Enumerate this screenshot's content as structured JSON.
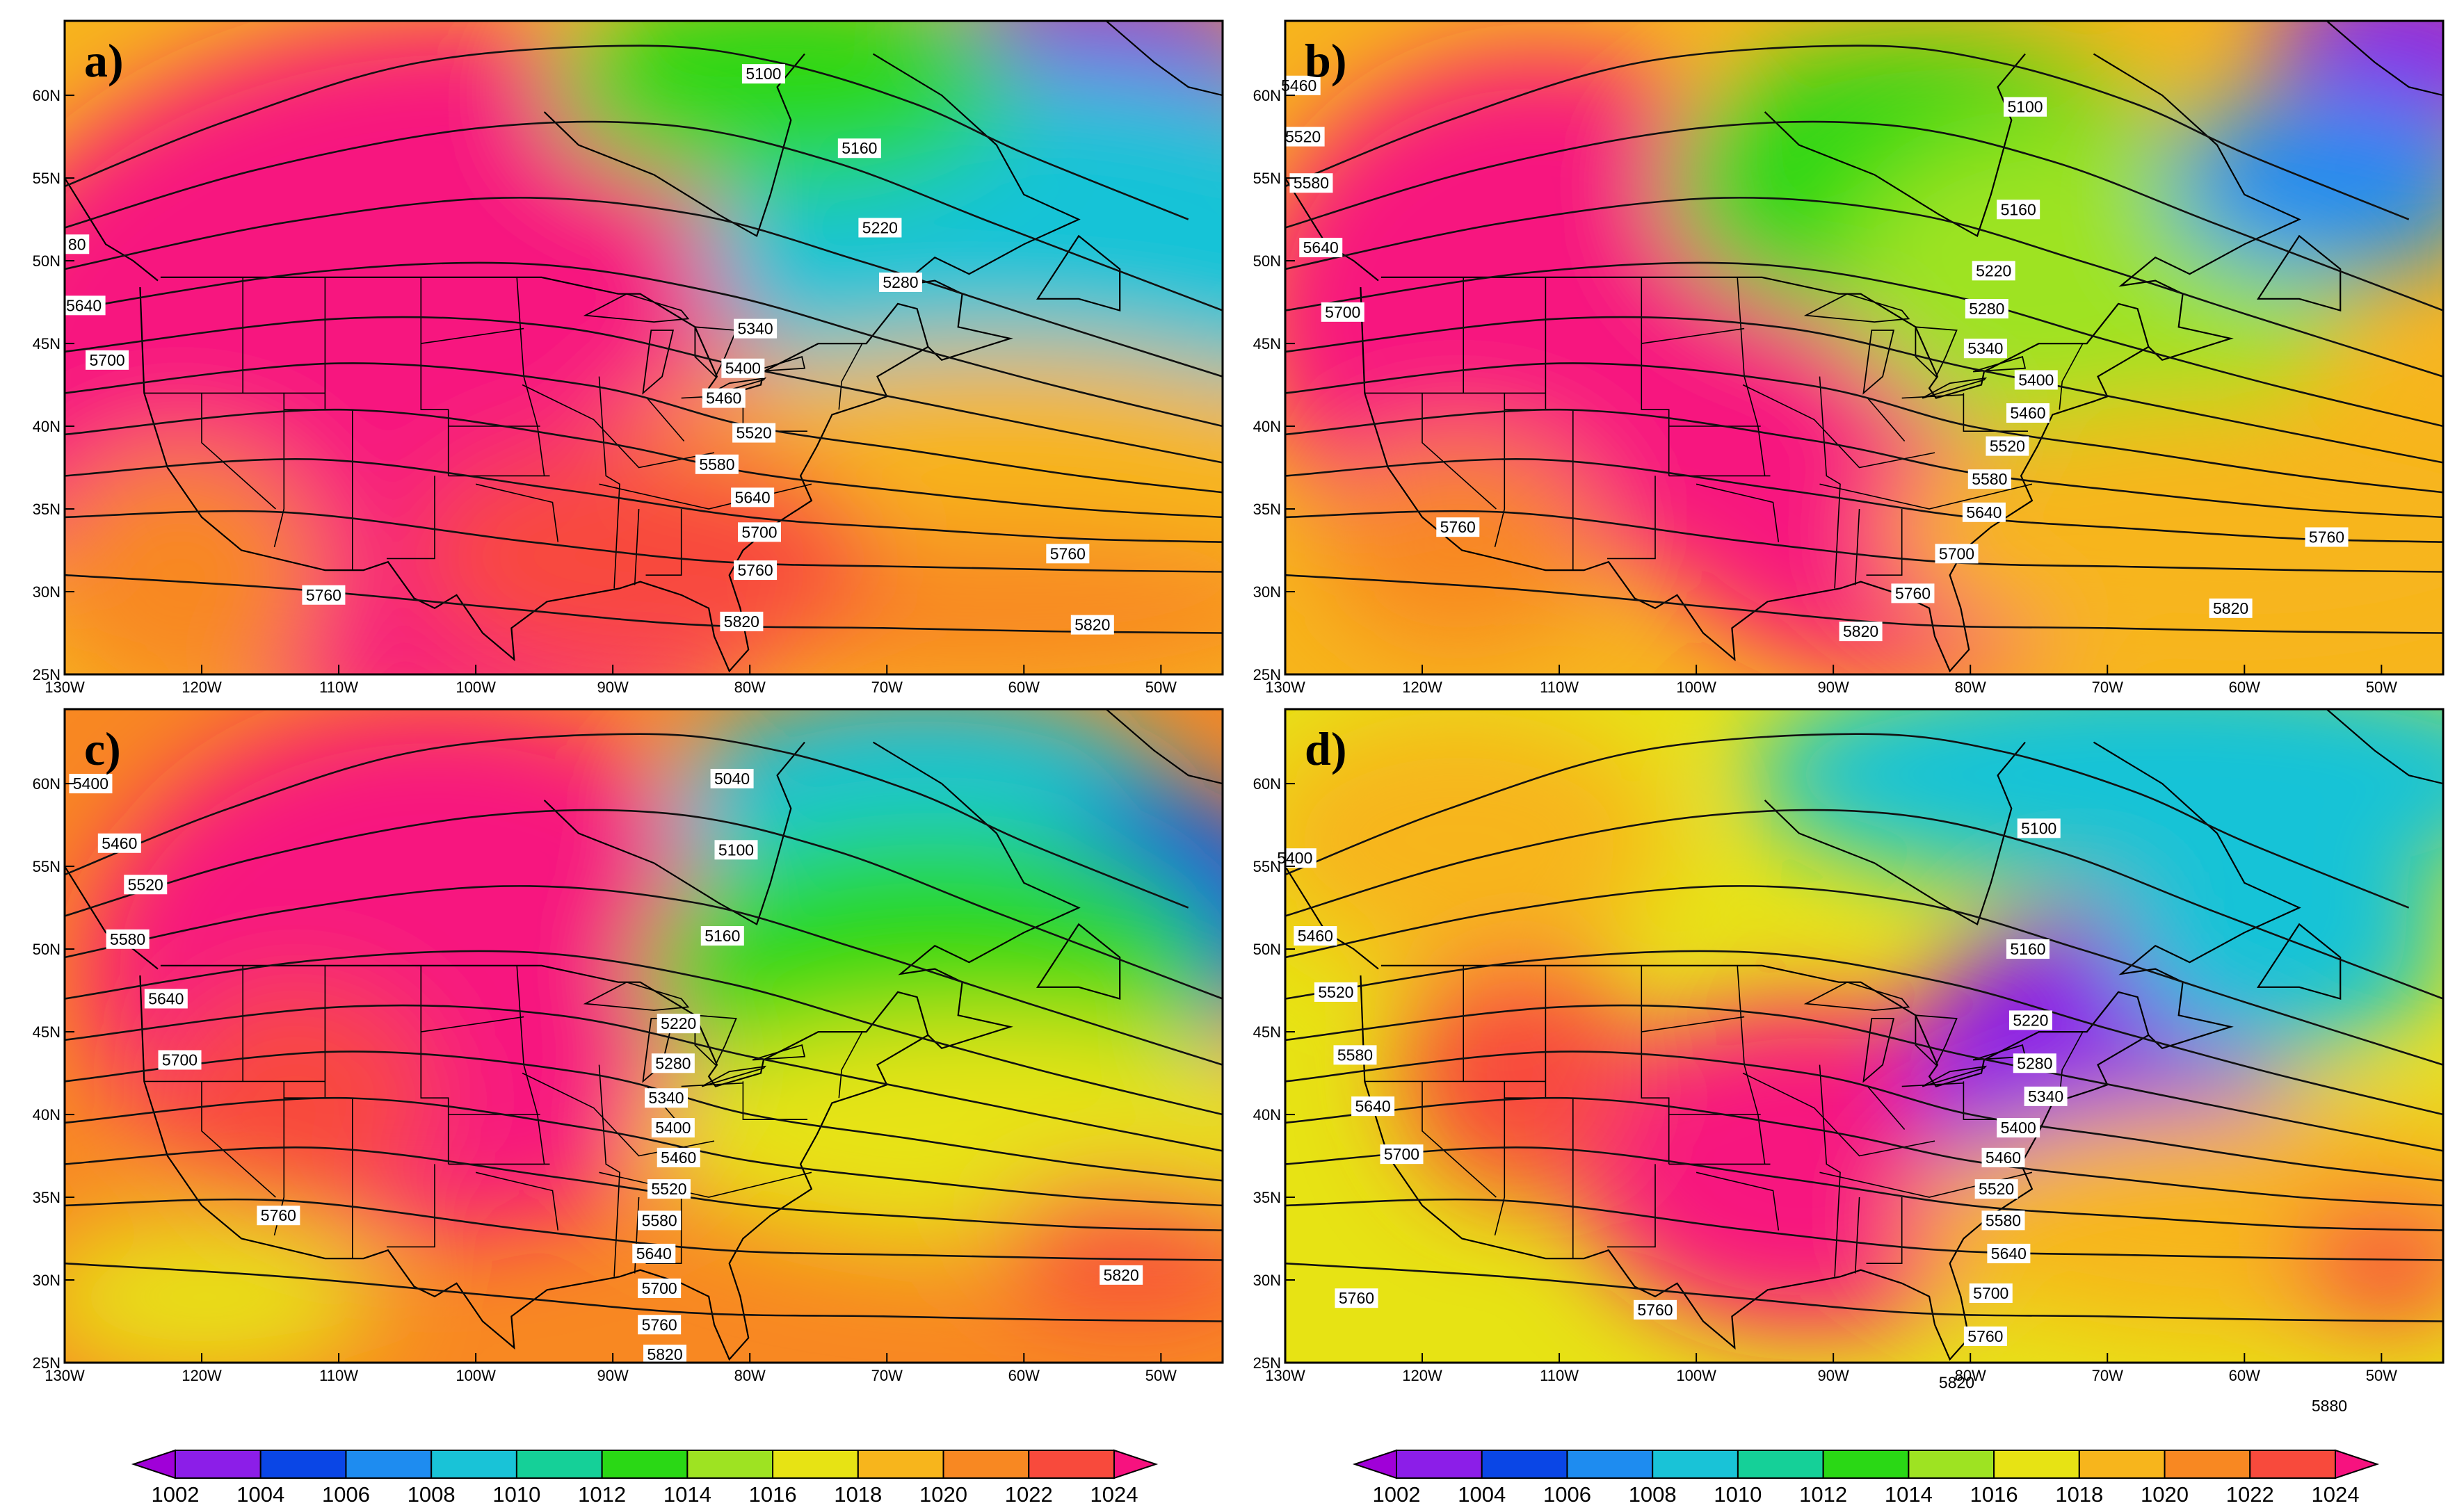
{
  "colorbar": {
    "levels": [
      "1002",
      "1004",
      "1006",
      "1008",
      "1010",
      "1012",
      "1014",
      "1016",
      "1018",
      "1020",
      "1022",
      "1024"
    ],
    "colors": [
      "#a000d8",
      "#8c1ee8",
      "#0a46e6",
      "#1e8cf0",
      "#19c3d7",
      "#15d098",
      "#2ad815",
      "#9ee322",
      "#e7e314",
      "#f7b51c",
      "#f88822",
      "#f84a3c",
      "#f7127f"
    ]
  },
  "axes": {
    "lon_labels": [
      "130W",
      "120W",
      "110W",
      "100W",
      "90W",
      "80W",
      "70W",
      "60W",
      "50W"
    ],
    "lat_labels": [
      "25N",
      "30N",
      "35N",
      "40N",
      "45N",
      "50N",
      "55N",
      "60N"
    ]
  },
  "panels": [
    {
      "label": "a)",
      "contour_labels": [
        {
          "text": "5100",
          "lon": -79.0,
          "lat": 61.3
        },
        {
          "text": "5160",
          "lon": -72.0,
          "lat": 56.8
        },
        {
          "text": "5220",
          "lon": -70.5,
          "lat": 52.0
        },
        {
          "text": "5280",
          "lon": -69.0,
          "lat": 48.7
        },
        {
          "text": "5340",
          "lon": -79.6,
          "lat": 45.9
        },
        {
          "text": "5400",
          "lon": -80.5,
          "lat": 43.5
        },
        {
          "text": "5460",
          "lon": -81.9,
          "lat": 41.7
        },
        {
          "text": "5520",
          "lon": -79.7,
          "lat": 39.6
        },
        {
          "text": "5580",
          "lon": -82.4,
          "lat": 37.7
        },
        {
          "text": "5640",
          "lon": -79.8,
          "lat": 35.7
        },
        {
          "text": "5700",
          "lon": -79.3,
          "lat": 33.6
        },
        {
          "text": "5760",
          "lon": -79.6,
          "lat": 31.3
        },
        {
          "text": "5820",
          "lon": -80.6,
          "lat": 28.2
        },
        {
          "text": "5760",
          "lon": -56.8,
          "lat": 32.3
        },
        {
          "text": "5820",
          "lon": -55.0,
          "lat": 28.0
        },
        {
          "text": "5760",
          "lon": -111.1,
          "lat": 29.8
        },
        {
          "text": "5700",
          "lon": -126.9,
          "lat": 44.0
        },
        {
          "text": "5640",
          "lon": -128.6,
          "lat": 47.3
        },
        {
          "text": "80",
          "lon": -129.1,
          "lat": 51.0
        }
      ]
    },
    {
      "label": "b)",
      "contour_labels": [
        {
          "text": "5100",
          "lon": -76.0,
          "lat": 59.3
        },
        {
          "text": "5160",
          "lon": -76.5,
          "lat": 53.1
        },
        {
          "text": "5220",
          "lon": -78.3,
          "lat": 49.4
        },
        {
          "text": "5280",
          "lon": -78.8,
          "lat": 47.1
        },
        {
          "text": "5340",
          "lon": -78.9,
          "lat": 44.7
        },
        {
          "text": "5400",
          "lon": -75.2,
          "lat": 42.8
        },
        {
          "text": "5460",
          "lon": -75.8,
          "lat": 40.8
        },
        {
          "text": "5520",
          "lon": -77.3,
          "lat": 38.8
        },
        {
          "text": "5580",
          "lon": -78.6,
          "lat": 36.8
        },
        {
          "text": "5640",
          "lon": -79.0,
          "lat": 34.8
        },
        {
          "text": "5700",
          "lon": -81.0,
          "lat": 32.3
        },
        {
          "text": "5760",
          "lon": -84.2,
          "lat": 29.9
        },
        {
          "text": "5820",
          "lon": -88.0,
          "lat": 27.6
        },
        {
          "text": "5760",
          "lon": -54.0,
          "lat": 33.3
        },
        {
          "text": "5820",
          "lon": -61.0,
          "lat": 29.0
        },
        {
          "text": "5760",
          "lon": -117.4,
          "lat": 33.9
        },
        {
          "text": "5700",
          "lon": -125.8,
          "lat": 46.9
        },
        {
          "text": "5640",
          "lon": -127.4,
          "lat": 50.8
        },
        {
          "text": "5580",
          "lon": -128.1,
          "lat": 54.7
        },
        {
          "text": "5520",
          "lon": -128.7,
          "lat": 57.5
        },
        {
          "text": "5460",
          "lon": -129.0,
          "lat": 60.6
        }
      ]
    },
    {
      "label": "c)",
      "contour_labels": [
        {
          "text": "5040",
          "lon": -81.3,
          "lat": 60.3
        },
        {
          "text": "5100",
          "lon": -81.0,
          "lat": 56.0
        },
        {
          "text": "5160",
          "lon": -82.0,
          "lat": 50.8
        },
        {
          "text": "5220",
          "lon": -85.2,
          "lat": 45.5
        },
        {
          "text": "5280",
          "lon": -85.6,
          "lat": 43.1
        },
        {
          "text": "5340",
          "lon": -86.1,
          "lat": 41.0
        },
        {
          "text": "5400",
          "lon": -85.6,
          "lat": 39.2
        },
        {
          "text": "5460",
          "lon": -85.2,
          "lat": 37.4
        },
        {
          "text": "5520",
          "lon": -85.9,
          "lat": 35.5
        },
        {
          "text": "5580",
          "lon": -86.6,
          "lat": 33.6
        },
        {
          "text": "5640",
          "lon": -87.0,
          "lat": 31.6
        },
        {
          "text": "5700",
          "lon": -86.6,
          "lat": 29.5
        },
        {
          "text": "5760",
          "lon": -86.6,
          "lat": 27.3
        },
        {
          "text": "5820",
          "lon": -86.2,
          "lat": 25.5
        },
        {
          "text": "5820",
          "lon": -52.9,
          "lat": 30.3
        },
        {
          "text": "5760",
          "lon": -114.4,
          "lat": 33.9
        },
        {
          "text": "5700",
          "lon": -121.6,
          "lat": 43.3
        },
        {
          "text": "5640",
          "lon": -122.6,
          "lat": 47.0
        },
        {
          "text": "5580",
          "lon": -125.4,
          "lat": 50.6
        },
        {
          "text": "5520",
          "lon": -124.1,
          "lat": 53.9
        },
        {
          "text": "5460",
          "lon": -126.0,
          "lat": 56.4
        },
        {
          "text": "5400",
          "lon": -128.1,
          "lat": 60.0
        }
      ]
    },
    {
      "label": "d)",
      "contour_labels": [
        {
          "text": "5100",
          "lon": -75.0,
          "lat": 57.3
        },
        {
          "text": "5160",
          "lon": -75.8,
          "lat": 50.0
        },
        {
          "text": "5220",
          "lon": -75.6,
          "lat": 45.7
        },
        {
          "text": "5280",
          "lon": -75.3,
          "lat": 43.1
        },
        {
          "text": "5340",
          "lon": -74.5,
          "lat": 41.1
        },
        {
          "text": "5400",
          "lon": -76.5,
          "lat": 39.2
        },
        {
          "text": "5460",
          "lon": -77.6,
          "lat": 37.4
        },
        {
          "text": "5520",
          "lon": -78.1,
          "lat": 35.5
        },
        {
          "text": "5580",
          "lon": -77.6,
          "lat": 33.6
        },
        {
          "text": "5640",
          "lon": -77.2,
          "lat": 31.6
        },
        {
          "text": "5700",
          "lon": -78.5,
          "lat": 29.2
        },
        {
          "text": "5760",
          "lon": -78.9,
          "lat": 26.6
        },
        {
          "text": "5820",
          "lon": -81.0,
          "lat": 23.8
        },
        {
          "text": "5880",
          "lon": -53.8,
          "lat": 22.4
        },
        {
          "text": "5760",
          "lon": -103.0,
          "lat": 28.2
        },
        {
          "text": "5760",
          "lon": -124.8,
          "lat": 28.9
        },
        {
          "text": "5700",
          "lon": -121.5,
          "lat": 37.6
        },
        {
          "text": "5640",
          "lon": -123.6,
          "lat": 40.5
        },
        {
          "text": "5580",
          "lon": -124.9,
          "lat": 43.6
        },
        {
          "text": "5520",
          "lon": -126.3,
          "lat": 47.4
        },
        {
          "text": "5460",
          "lon": -127.8,
          "lat": 50.8
        },
        {
          "text": "5400",
          "lon": -129.3,
          "lat": 55.5
        }
      ]
    }
  ]
}
